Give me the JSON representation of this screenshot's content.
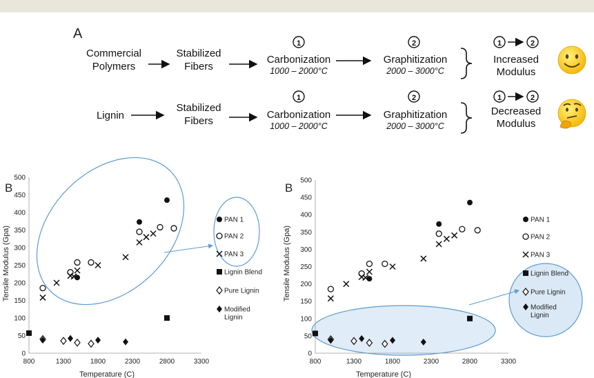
{
  "panel_a": {
    "label": "A",
    "row1": {
      "start_line1": "Commercial",
      "start_line2": "Polymers",
      "stab_line1": "Stabilized",
      "stab_line2": "Fibers",
      "carb": "Carbonization",
      "carb_temp": "1000 – 2000°C",
      "graph": "Graphitization",
      "graph_temp": "2000 – 3000°C",
      "step1": "1",
      "step2": "2",
      "result_line1": "Increased",
      "result_line2": "Modulus",
      "emoji": "slightly-smiling-face"
    },
    "row2": {
      "start_line1": "Lignin",
      "stab_line1": "Stabilized",
      "stab_line2": "Fibers",
      "carb": "Carbonization",
      "carb_temp": "1000 – 2000°C",
      "graph": "Graphitization",
      "graph_temp": "2000 – 3000°C",
      "step1": "1",
      "step2": "2",
      "result_line1": "Decreased",
      "result_line2": "Modulus",
      "emoji": "thinking-face"
    }
  },
  "chart_data": [
    {
      "type": "scatter",
      "panel_label": "B",
      "xlabel": "Temperature (C)",
      "ylabel": "Tensile Modulus (Gpa)",
      "xlim": [
        800,
        3300
      ],
      "ylim": [
        0,
        500
      ],
      "xticks": [
        "800",
        "1300",
        "1800",
        "2300",
        "2800",
        "3300"
      ],
      "yticks": [
        "0",
        "50",
        "100",
        "150",
        "200",
        "250",
        "300",
        "350",
        "400",
        "450",
        "500"
      ],
      "legend_position": "right",
      "highlight": "circle around PAN series",
      "series": [
        {
          "name": "PAN 1",
          "marker": "filled-circle",
          "x": [
            1500,
            2400,
            2800
          ],
          "y": [
            215,
            373,
            435
          ]
        },
        {
          "name": "PAN 2",
          "marker": "open-circle",
          "x": [
            1000,
            1400,
            1500,
            1700,
            2400,
            2700,
            2900
          ],
          "y": [
            185,
            230,
            258,
            258,
            345,
            358,
            355
          ]
        },
        {
          "name": "PAN 3",
          "marker": "x",
          "x": [
            1000,
            1200,
            1400,
            1450,
            1500,
            1800,
            2200,
            2400,
            2500,
            2600
          ],
          "y": [
            158,
            200,
            220,
            218,
            235,
            250,
            273,
            315,
            330,
            340
          ]
        },
        {
          "name": "Lignin Blend",
          "marker": "filled-square",
          "x": [
            800,
            2800
          ],
          "y": [
            57,
            100
          ]
        },
        {
          "name": "Pure Lignin",
          "marker": "open-diamond",
          "x": [
            1000,
            1300,
            1500,
            1700
          ],
          "y": [
            40,
            35,
            30,
            27
          ]
        },
        {
          "name": "Modified Lignin",
          "marker": "filled-diamond",
          "x": [
            1000,
            1400,
            1800,
            2200
          ],
          "y": [
            37,
            42,
            37,
            32
          ]
        }
      ]
    },
    {
      "type": "scatter",
      "panel_label": "B",
      "xlabel": "Temperature (C)",
      "ylabel": "Tensile Modulus (Gpa)",
      "xlim": [
        800,
        3300
      ],
      "ylim": [
        0,
        500
      ],
      "xticks": [
        "800",
        "1300",
        "1800",
        "2300",
        "2800",
        "3300"
      ],
      "yticks": [
        "0",
        "50",
        "100",
        "150",
        "200",
        "250",
        "300",
        "350",
        "400",
        "450",
        "500"
      ],
      "legend_position": "right",
      "highlight": "shaded ellipse around lignin series",
      "series": [
        {
          "name": "PAN 1",
          "marker": "filled-circle",
          "x": [
            1500,
            2400,
            2800
          ],
          "y": [
            215,
            373,
            435
          ]
        },
        {
          "name": "PAN 2",
          "marker": "open-circle",
          "x": [
            1000,
            1400,
            1500,
            1700,
            2400,
            2700,
            2900
          ],
          "y": [
            185,
            230,
            258,
            258,
            345,
            358,
            355
          ]
        },
        {
          "name": "PAN 3",
          "marker": "x",
          "x": [
            1000,
            1200,
            1400,
            1450,
            1500,
            1800,
            2200,
            2400,
            2500,
            2600
          ],
          "y": [
            158,
            200,
            220,
            218,
            235,
            250,
            273,
            315,
            330,
            340
          ]
        },
        {
          "name": "Lignin Blend",
          "marker": "filled-square",
          "x": [
            800,
            2800
          ],
          "y": [
            57,
            100
          ]
        },
        {
          "name": "Pure Lignin",
          "marker": "open-diamond",
          "x": [
            1000,
            1300,
            1500,
            1700
          ],
          "y": [
            40,
            35,
            30,
            27
          ]
        },
        {
          "name": "Modified Lignin",
          "marker": "filled-diamond",
          "x": [
            1000,
            1400,
            1800,
            2200
          ],
          "y": [
            37,
            42,
            37,
            32
          ]
        }
      ]
    }
  ]
}
